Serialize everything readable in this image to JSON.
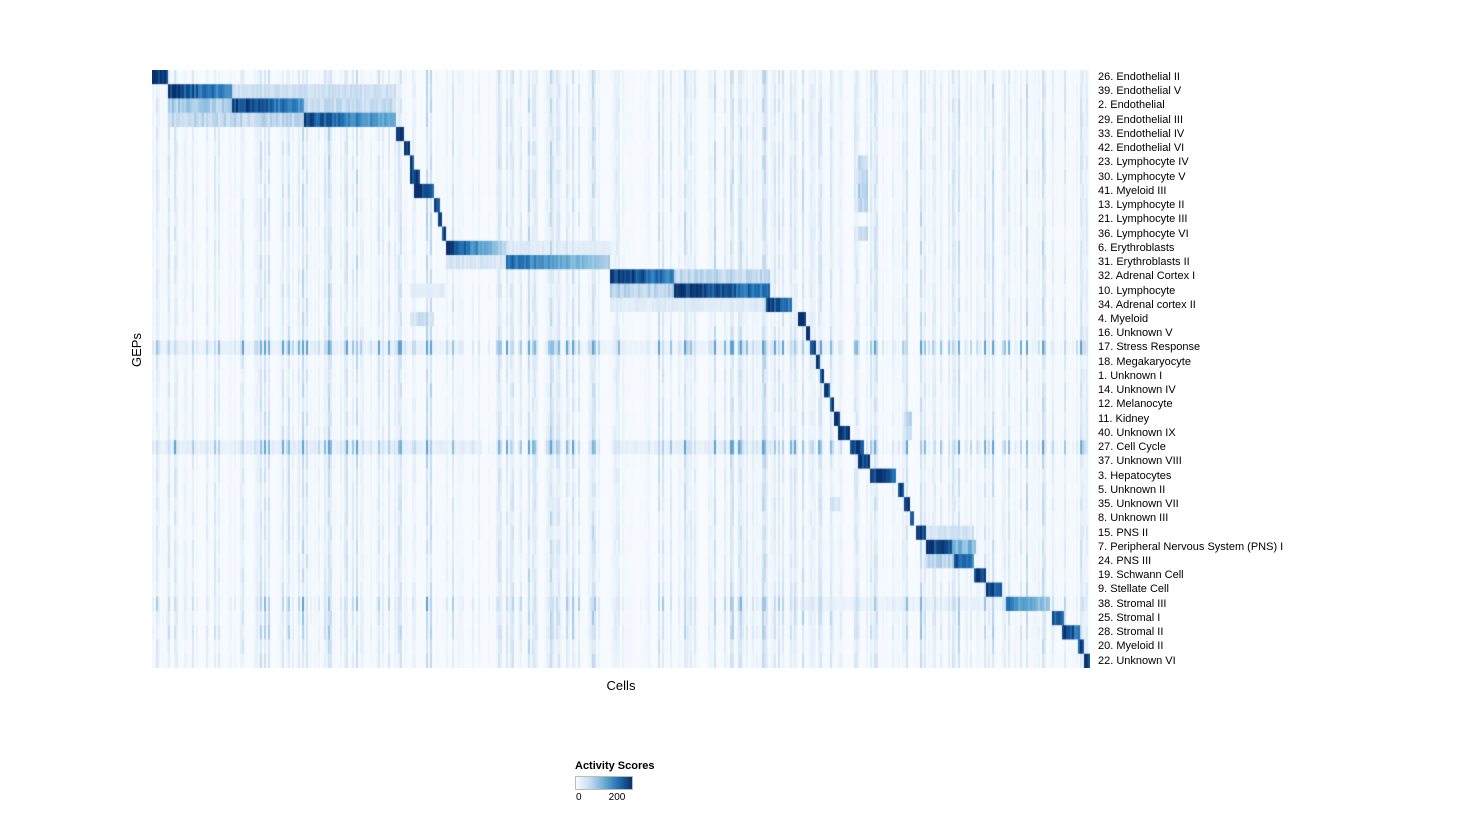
{
  "figure": {
    "background": "#ffffff",
    "text_color": "#000000"
  },
  "chart_data": {
    "type": "heatmap",
    "title": "",
    "xlabel": "Cells",
    "ylabel": "GEPs",
    "grid": false,
    "value_range": [
      0,
      200
    ],
    "colormap": "Blues",
    "colormap_stops": [
      "#f7fbff",
      "#c6dbef",
      "#6baed6",
      "#2171b5",
      "#08306b"
    ],
    "legend": {
      "title": "Activity Scores",
      "position": "bottom",
      "ticks": [
        {
          "label": "0",
          "pos": 0.03
        },
        {
          "label": "200",
          "pos": 0.75
        }
      ]
    },
    "rows": [
      {
        "label": "26.  Endothelial II",
        "x0": 0.0,
        "x1": 0.015,
        "peak": 1.0,
        "fade": 0.0,
        "stripe": 1,
        "bands": []
      },
      {
        "label": "39.  Endothelial V",
        "x0": 0.017,
        "x1": 0.085,
        "peak": 0.95,
        "fade": 0.35,
        "stripe": 1,
        "bands": [
          [
            0.085,
            0.26,
            0.22
          ]
        ]
      },
      {
        "label": "2.  Endothelial",
        "x0": 0.085,
        "x1": 0.16,
        "peak": 0.95,
        "fade": 0.35,
        "stripe": 1,
        "bands": [
          [
            0.017,
            0.085,
            0.35
          ],
          [
            0.16,
            0.26,
            0.25
          ]
        ]
      },
      {
        "label": "29.  Endothelial III",
        "x0": 0.16,
        "x1": 0.259,
        "peak": 0.9,
        "fade": 0.45,
        "stripe": 1,
        "bands": [
          [
            0.017,
            0.16,
            0.28
          ]
        ]
      },
      {
        "label": "33.  Endothelial IV",
        "x0": 0.259,
        "x1": 0.267,
        "peak": 1.0,
        "fade": 0.0,
        "stripe": 1,
        "bands": []
      },
      {
        "label": "42.  Endothelial VI",
        "x0": 0.267,
        "x1": 0.273,
        "peak": 1.0,
        "fade": 0.0,
        "stripe": 1,
        "bands": []
      },
      {
        "label": "23.  Lymphocyte IV",
        "x0": 0.273,
        "x1": 0.278,
        "peak": 0.9,
        "fade": 0.0,
        "stripe": 1,
        "bands": [
          [
            0.752,
            0.762,
            0.3
          ]
        ]
      },
      {
        "label": "30.  Lymphocyte V",
        "x0": 0.275,
        "x1": 0.285,
        "peak": 0.95,
        "fade": 0.0,
        "stripe": 1,
        "bands": [
          [
            0.752,
            0.762,
            0.3
          ]
        ]
      },
      {
        "label": "41.  Myeloid III",
        "x0": 0.278,
        "x1": 0.3,
        "peak": 1.0,
        "fade": 0.2,
        "stripe": 1,
        "bands": [
          [
            0.752,
            0.762,
            0.35
          ]
        ]
      },
      {
        "label": "13.  Lymphocyte II",
        "x0": 0.3,
        "x1": 0.305,
        "peak": 0.95,
        "fade": 0.0,
        "stripe": 1,
        "bands": [
          [
            0.752,
            0.762,
            0.3
          ]
        ]
      },
      {
        "label": "21.  Lymphocyte III",
        "x0": 0.304,
        "x1": 0.309,
        "peak": 0.9,
        "fade": 0.0,
        "stripe": 1,
        "bands": []
      },
      {
        "label": "36.  Lymphocyte VI",
        "x0": 0.308,
        "x1": 0.313,
        "peak": 0.9,
        "fade": 0.0,
        "stripe": 1,
        "bands": [
          [
            0.752,
            0.762,
            0.25
          ]
        ]
      },
      {
        "label": "6.  Erythroblasts",
        "x0": 0.313,
        "x1": 0.377,
        "peak": 1.0,
        "fade": 0.75,
        "stripe": 1,
        "bands": [
          [
            0.377,
            0.49,
            0.12
          ]
        ]
      },
      {
        "label": "31.  Erythroblasts II",
        "x0": 0.377,
        "x1": 0.488,
        "peak": 0.75,
        "fade": 0.55,
        "stripe": 1,
        "bands": [
          [
            0.313,
            0.377,
            0.18
          ]
        ]
      },
      {
        "label": "32.  Adrenal Cortex I",
        "x0": 0.488,
        "x1": 0.555,
        "peak": 1.0,
        "fade": 0.35,
        "stripe": 1,
        "bands": [
          [
            0.555,
            0.657,
            0.28
          ]
        ]
      },
      {
        "label": "10.  Lymphocyte",
        "x0": 0.555,
        "x1": 0.657,
        "peak": 1.0,
        "fade": 0.3,
        "stripe": 1,
        "bands": [
          [
            0.488,
            0.555,
            0.3
          ],
          [
            0.273,
            0.313,
            0.12
          ]
        ]
      },
      {
        "label": "34.  Adrenal cortex II",
        "x0": 0.654,
        "x1": 0.682,
        "peak": 1.0,
        "fade": 0.35,
        "stripe": 1,
        "bands": [
          [
            0.488,
            0.654,
            0.13
          ]
        ]
      },
      {
        "label": "4.  Myeloid",
        "x0": 0.688,
        "x1": 0.696,
        "peak": 1.0,
        "fade": 0.0,
        "stripe": 1,
        "bands": [
          [
            0.273,
            0.3,
            0.22
          ]
        ]
      },
      {
        "label": "16.  Unknown V",
        "x0": 0.696,
        "x1": 0.701,
        "peak": 0.95,
        "fade": 0.0,
        "stripe": 1,
        "bands": []
      },
      {
        "label": "17.  Stress Response",
        "x0": 0.701,
        "x1": 0.707,
        "peak": 0.95,
        "fade": 0.0,
        "stripe": 3.2,
        "bands": [
          [
            0.0,
            0.33,
            0.07
          ],
          [
            0.45,
            0.72,
            0.06
          ]
        ]
      },
      {
        "label": "18.  Megakaryocyte",
        "x0": 0.707,
        "x1": 0.712,
        "peak": 0.95,
        "fade": 0.0,
        "stripe": 1,
        "bands": []
      },
      {
        "label": "1.  Unknown I",
        "x0": 0.712,
        "x1": 0.716,
        "peak": 0.9,
        "fade": 0.0,
        "stripe": 1,
        "bands": []
      },
      {
        "label": "14.  Unknown IV",
        "x0": 0.716,
        "x1": 0.722,
        "peak": 0.95,
        "fade": 0.0,
        "stripe": 1,
        "bands": []
      },
      {
        "label": "12.  Melanocyte",
        "x0": 0.722,
        "x1": 0.727,
        "peak": 0.95,
        "fade": 0.0,
        "stripe": 1,
        "bands": []
      },
      {
        "label": "11.  Kidney",
        "x0": 0.727,
        "x1": 0.732,
        "peak": 0.95,
        "fade": 0.0,
        "stripe": 1,
        "bands": [
          [
            0.8,
            0.81,
            0.3
          ]
        ]
      },
      {
        "label": "40.  Unknown IX",
        "x0": 0.73,
        "x1": 0.744,
        "peak": 0.95,
        "fade": 0.0,
        "stripe": 1,
        "bands": [
          [
            0.8,
            0.81,
            0.2
          ]
        ]
      },
      {
        "label": "27.  Cell Cycle",
        "x0": 0.743,
        "x1": 0.757,
        "peak": 0.9,
        "fade": 0.0,
        "stripe": 2.8,
        "bands": [
          [
            0.0,
            0.35,
            0.09
          ],
          [
            0.49,
            0.66,
            0.09
          ]
        ]
      },
      {
        "label": "37.  Unknown VIII",
        "x0": 0.751,
        "x1": 0.764,
        "peak": 0.95,
        "fade": 0.0,
        "stripe": 1,
        "bands": []
      },
      {
        "label": "3.  Hepatocytes",
        "x0": 0.764,
        "x1": 0.793,
        "peak": 1.0,
        "fade": 0.25,
        "stripe": 1,
        "bands": []
      },
      {
        "label": "5.  Unknown II",
        "x0": 0.794,
        "x1": 0.8,
        "peak": 0.95,
        "fade": 0.0,
        "stripe": 1,
        "bands": []
      },
      {
        "label": "35.  Unknown VII",
        "x0": 0.8,
        "x1": 0.806,
        "peak": 0.9,
        "fade": 0.0,
        "stripe": 1,
        "bands": [
          [
            0.722,
            0.732,
            0.2
          ]
        ]
      },
      {
        "label": "8.  Unknown III",
        "x0": 0.806,
        "x1": 0.811,
        "peak": 0.95,
        "fade": 0.0,
        "stripe": 1,
        "bands": []
      },
      {
        "label": "15.  PNS II",
        "x0": 0.813,
        "x1": 0.825,
        "peak": 0.95,
        "fade": 0.0,
        "stripe": 1,
        "bands": [
          [
            0.825,
            0.875,
            0.2
          ]
        ]
      },
      {
        "label": "7.  Peripheral Nervous System (PNS) I",
        "x0": 0.825,
        "x1": 0.852,
        "peak": 1.0,
        "fade": 0.2,
        "stripe": 1,
        "bands": [
          [
            0.852,
            0.877,
            0.45
          ]
        ]
      },
      {
        "label": "24.  PNS III",
        "x0": 0.853,
        "x1": 0.875,
        "peak": 0.9,
        "fade": 0.3,
        "stripe": 1,
        "bands": [
          [
            0.825,
            0.853,
            0.3
          ]
        ]
      },
      {
        "label": "19.  Schwann Cell",
        "x0": 0.875,
        "x1": 0.889,
        "peak": 0.9,
        "fade": 0.0,
        "stripe": 1,
        "bands": []
      },
      {
        "label": "9.  Stellate Cell",
        "x0": 0.889,
        "x1": 0.906,
        "peak": 1.0,
        "fade": 0.2,
        "stripe": 1,
        "bands": []
      },
      {
        "label": "38.  Stromal III",
        "x0": 0.909,
        "x1": 0.956,
        "peak": 0.7,
        "fade": 0.5,
        "stripe": 1.8,
        "bands": [
          [
            0.69,
            0.909,
            0.07
          ]
        ]
      },
      {
        "label": "25.  Stromal I",
        "x0": 0.959,
        "x1": 0.971,
        "peak": 0.85,
        "fade": 0.0,
        "stripe": 1.3,
        "bands": []
      },
      {
        "label": "28.  Stromal II",
        "x0": 0.97,
        "x1": 0.988,
        "peak": 1.0,
        "fade": 0.3,
        "stripe": 1.3,
        "bands": []
      },
      {
        "label": "20.  Myeloid II",
        "x0": 0.987,
        "x1": 0.993,
        "peak": 0.9,
        "fade": 0.0,
        "stripe": 1,
        "bands": []
      },
      {
        "label": "22.  Unknown VI",
        "x0": 0.993,
        "x1": 1.0,
        "peak": 1.0,
        "fade": 0.0,
        "stripe": 1,
        "bands": []
      }
    ]
  }
}
